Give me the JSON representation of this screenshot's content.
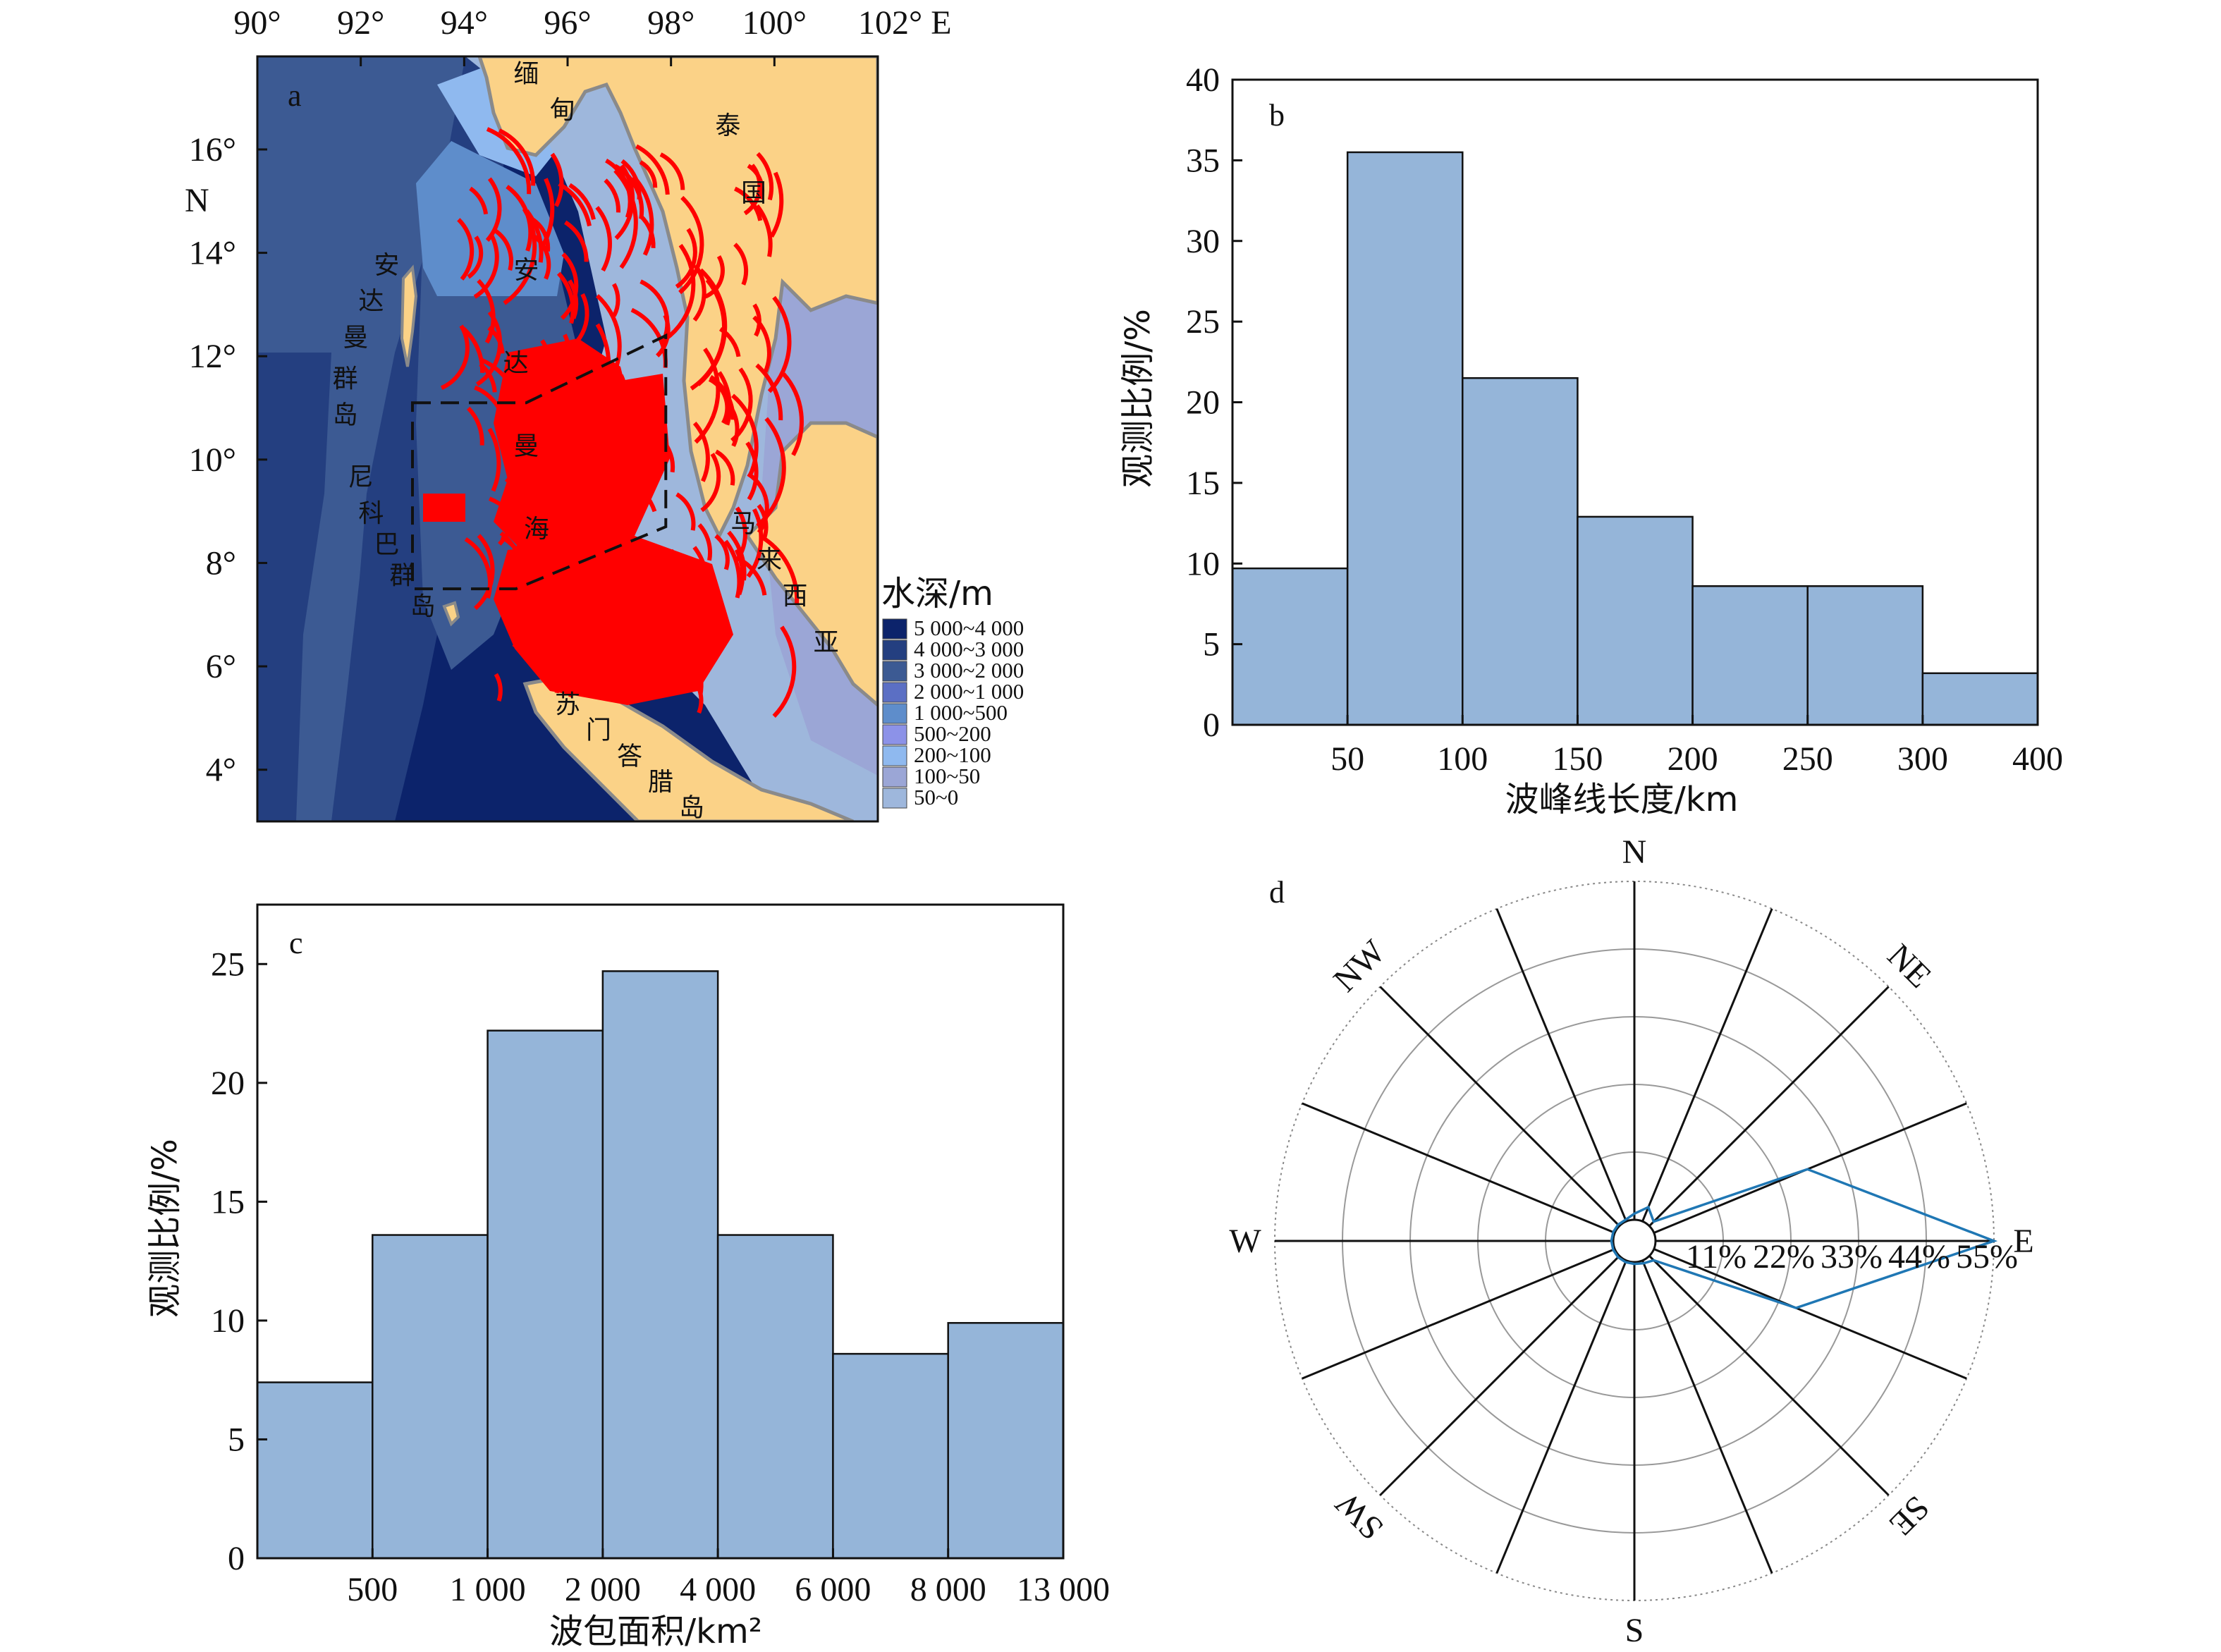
{
  "chart_data": [
    {
      "panel": "a",
      "type": "map",
      "x_ticks": [
        "90°",
        "92°",
        "94°",
        "96°",
        "98°",
        "100°",
        "102° E"
      ],
      "y_ticks": [
        "16°",
        "14°",
        "12°",
        "10°",
        "8°",
        "6°",
        "4°"
      ],
      "y_axis_unit": "N",
      "xlim": [
        90,
        102
      ],
      "ylim": [
        3,
        17.8
      ],
      "place_labels": [
        {
          "text": "缅",
          "lon": 95.2,
          "lat": 17.3
        },
        {
          "text": "甸",
          "lon": 95.9,
          "lat": 16.6
        },
        {
          "text": "泰",
          "lon": 99.1,
          "lat": 16.3
        },
        {
          "text": "国",
          "lon": 99.6,
          "lat": 15.0
        },
        {
          "text": "安",
          "lon": 92.5,
          "lat": 13.6
        },
        {
          "text": "达",
          "lon": 92.2,
          "lat": 12.9
        },
        {
          "text": "曼",
          "lon": 91.9,
          "lat": 12.2
        },
        {
          "text": "群",
          "lon": 91.7,
          "lat": 11.4
        },
        {
          "text": "岛",
          "lon": 91.7,
          "lat": 10.7
        },
        {
          "text": "安",
          "lon": 95.2,
          "lat": 13.5
        },
        {
          "text": "达",
          "lon": 95.0,
          "lat": 11.7
        },
        {
          "text": "曼",
          "lon": 95.2,
          "lat": 10.1
        },
        {
          "text": "海",
          "lon": 95.4,
          "lat": 8.5
        },
        {
          "text": "尼",
          "lon": 92.0,
          "lat": 9.5
        },
        {
          "text": "科",
          "lon": 92.2,
          "lat": 8.8
        },
        {
          "text": "巴",
          "lon": 92.5,
          "lat": 8.2
        },
        {
          "text": "群",
          "lon": 92.8,
          "lat": 7.6
        },
        {
          "text": "岛",
          "lon": 93.2,
          "lat": 7.0
        },
        {
          "text": "马",
          "lon": 99.4,
          "lat": 8.6
        },
        {
          "text": "来",
          "lon": 99.9,
          "lat": 7.9
        },
        {
          "text": "西",
          "lon": 100.4,
          "lat": 7.2
        },
        {
          "text": "亚",
          "lon": 101.0,
          "lat": 6.3
        },
        {
          "text": "苏",
          "lon": 96.0,
          "lat": 5.1
        },
        {
          "text": "门",
          "lon": 96.6,
          "lat": 4.6
        },
        {
          "text": "答",
          "lon": 97.2,
          "lat": 4.1
        },
        {
          "text": "腊",
          "lon": 97.8,
          "lat": 3.6
        },
        {
          "text": "岛",
          "lon": 98.4,
          "lat": 3.1
        }
      ],
      "study_area_lonlat": [
        [
          93.0,
          11.1
        ],
        [
          94.3,
          11.1
        ],
        [
          95.2,
          11.1
        ],
        [
          97.9,
          12.4
        ],
        [
          97.9,
          8.7
        ],
        [
          95.0,
          7.5
        ],
        [
          93.0,
          7.5
        ]
      ],
      "legend": {
        "title": "水深/m",
        "entries": [
          {
            "label": "5 000~4 000",
            "color": "#0c236b"
          },
          {
            "label": "4 000~3 000",
            "color": "#243f80"
          },
          {
            "label": "3 000~2 000",
            "color": "#3c5a93"
          },
          {
            "label": "2 000~1 000",
            "color": "#5b6fc4"
          },
          {
            "label": "1 000~500",
            "color": "#5e8dcb"
          },
          {
            "label": "500~200",
            "color": "#8c92e8"
          },
          {
            "label": "200~100",
            "color": "#8fb9ef"
          },
          {
            "label": "100~50",
            "color": "#9ba6d6"
          },
          {
            "label": "50~0",
            "color": "#9eb7dc"
          }
        ]
      },
      "colors": {
        "land": "#fbd287",
        "wave_crest": "#ff0000",
        "coast": "#8a8a8a"
      }
    },
    {
      "panel": "b",
      "type": "bar",
      "bin_edges": [
        0,
        50,
        100,
        150,
        200,
        250,
        300,
        400
      ],
      "values": [
        9.7,
        35.5,
        21.5,
        12.9,
        8.6,
        8.6,
        3.2
      ],
      "x_ticks": [
        "50",
        "100",
        "150",
        "200",
        "250",
        "300",
        "400"
      ],
      "y_ticks": [
        "0",
        "5",
        "10",
        "15",
        "20",
        "25",
        "30",
        "35",
        "40"
      ],
      "ylim": [
        0,
        40
      ],
      "xlabel": "波峰线长度/km",
      "ylabel": "观测比例/%",
      "bar_color": "#95b5d9"
    },
    {
      "panel": "c",
      "type": "bar",
      "categories_edges": [
        "",
        "500",
        "1 000",
        "2 000",
        "4 000",
        "6 000",
        "8 000",
        "13 000"
      ],
      "values": [
        7.4,
        13.6,
        22.2,
        24.7,
        13.6,
        8.6,
        9.9
      ],
      "x_ticks": [
        "500",
        "1 000",
        "2 000",
        "4 000",
        "6 000",
        "8 000",
        "13 000"
      ],
      "y_ticks": [
        "0",
        "5",
        "10",
        "15",
        "20",
        "25"
      ],
      "ylim": [
        0,
        27.5
      ],
      "xlabel": "波包面积/km²",
      "ylabel": "观测比例/%",
      "bar_color": "#95b5d9"
    },
    {
      "panel": "d",
      "type": "polar",
      "directions_deg": [
        0,
        22.5,
        45,
        67.5,
        90,
        112.5,
        135,
        157.5,
        180,
        202.5,
        225,
        247.5,
        270,
        292.5,
        315,
        337.5
      ],
      "values_percent": [
        1.0,
        2.5,
        1.0,
        27.0,
        55.0,
        25.0,
        1.0,
        0.5,
        0.3,
        0.3,
        0.3,
        0.3,
        0.3,
        0.3,
        0.3,
        0.3
      ],
      "rmax": 55,
      "ring_labels": [
        "11%",
        "22%",
        "33%",
        "44%",
        "55%"
      ],
      "compass_labels": {
        "N": "N",
        "NE": "NE",
        "E": "E",
        "SE": "SE",
        "S": "S",
        "SW": "SW",
        "W": "W",
        "NW": "NW"
      },
      "line_color": "#1f77b4"
    }
  ],
  "panel_letters": {
    "a": "a",
    "b": "b",
    "c": "c",
    "d": "d"
  }
}
